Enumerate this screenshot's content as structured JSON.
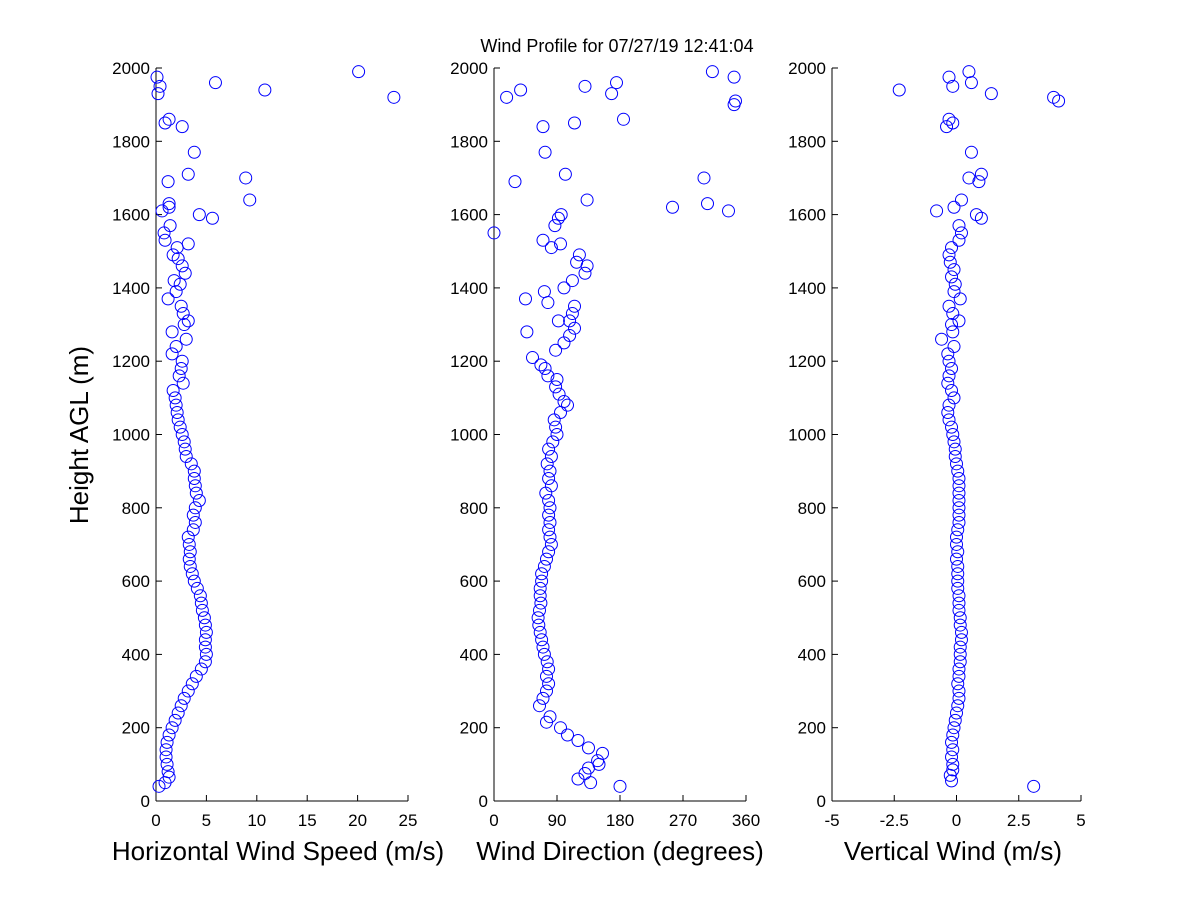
{
  "figure": {
    "title": "Wind Profile for  07/27/19 12:41:04",
    "ylabel": "Height AGL (m)"
  },
  "style": {
    "marker_color": "#0000ff",
    "axis_color": "#000000",
    "background": "#ffffff"
  },
  "chart_data": [
    {
      "type": "scatter",
      "title": "Wind Profile for  07/27/19 12:41:04",
      "xlabel": "Horizontal Wind Speed (m/s)",
      "ylabel": "Height AGL (m)",
      "xlim": [
        0,
        25
      ],
      "ylim": [
        0,
        2000
      ],
      "xticks": [
        0,
        5,
        10,
        15,
        20,
        25
      ],
      "xtick_labels": [
        "0",
        "5",
        "10",
        "15",
        "20",
        "25"
      ],
      "yticks": [
        0,
        200,
        400,
        600,
        800,
        1000,
        1200,
        1400,
        1600,
        1800,
        2000
      ],
      "ytick_labels": [
        "0",
        "200",
        "400",
        "600",
        "800",
        "1000",
        "1200",
        "1400",
        "1600",
        "1800",
        "2000"
      ],
      "marker": "open-circle",
      "grid": false,
      "points": [
        [
          0.3,
          40
        ],
        [
          0.9,
          50
        ],
        [
          1.3,
          65
        ],
        [
          1.2,
          80
        ],
        [
          1.1,
          100
        ],
        [
          1.0,
          120
        ],
        [
          1.0,
          140
        ],
        [
          1.1,
          160
        ],
        [
          1.3,
          180
        ],
        [
          1.6,
          200
        ],
        [
          1.9,
          220
        ],
        [
          2.2,
          240
        ],
        [
          2.5,
          260
        ],
        [
          2.8,
          280
        ],
        [
          3.2,
          300
        ],
        [
          3.6,
          320
        ],
        [
          4.0,
          340
        ],
        [
          4.5,
          360
        ],
        [
          4.9,
          380
        ],
        [
          5.0,
          400
        ],
        [
          4.9,
          420
        ],
        [
          4.9,
          440
        ],
        [
          5.0,
          460
        ],
        [
          4.9,
          480
        ],
        [
          4.8,
          500
        ],
        [
          4.6,
          520
        ],
        [
          4.5,
          540
        ],
        [
          4.4,
          560
        ],
        [
          4.1,
          580
        ],
        [
          3.8,
          600
        ],
        [
          3.6,
          620
        ],
        [
          3.4,
          640
        ],
        [
          3.3,
          660
        ],
        [
          3.4,
          680
        ],
        [
          3.3,
          700
        ],
        [
          3.2,
          720
        ],
        [
          3.7,
          740
        ],
        [
          3.9,
          760
        ],
        [
          3.7,
          780
        ],
        [
          3.9,
          800
        ],
        [
          4.3,
          820
        ],
        [
          4.0,
          840
        ],
        [
          3.9,
          860
        ],
        [
          3.8,
          880
        ],
        [
          3.8,
          900
        ],
        [
          3.5,
          920
        ],
        [
          3.0,
          940
        ],
        [
          2.9,
          960
        ],
        [
          2.8,
          980
        ],
        [
          2.6,
          1000
        ],
        [
          2.4,
          1020
        ],
        [
          2.2,
          1040
        ],
        [
          2.1,
          1060
        ],
        [
          2.0,
          1080
        ],
        [
          1.9,
          1100
        ],
        [
          1.7,
          1120
        ],
        [
          2.7,
          1140
        ],
        [
          2.3,
          1160
        ],
        [
          2.5,
          1180
        ],
        [
          2.6,
          1200
        ],
        [
          1.6,
          1220
        ],
        [
          2.0,
          1240
        ],
        [
          3.0,
          1260
        ],
        [
          1.6,
          1280
        ],
        [
          2.8,
          1300
        ],
        [
          3.2,
          1310
        ],
        [
          2.7,
          1330
        ],
        [
          2.5,
          1350
        ],
        [
          1.2,
          1370
        ],
        [
          2.0,
          1390
        ],
        [
          2.4,
          1410
        ],
        [
          1.8,
          1420
        ],
        [
          2.9,
          1440
        ],
        [
          2.6,
          1460
        ],
        [
          2.2,
          1480
        ],
        [
          1.7,
          1490
        ],
        [
          2.1,
          1510
        ],
        [
          3.2,
          1520
        ],
        [
          0.9,
          1530
        ],
        [
          0.8,
          1550
        ],
        [
          1.4,
          1570
        ],
        [
          5.6,
          1590
        ],
        [
          4.3,
          1600
        ],
        [
          0.6,
          1610
        ],
        [
          1.3,
          1620
        ],
        [
          1.3,
          1630
        ],
        [
          9.3,
          1640
        ],
        [
          8.9,
          1700
        ],
        [
          3.2,
          1710
        ],
        [
          1.2,
          1690
        ],
        [
          3.8,
          1770
        ],
        [
          2.6,
          1840
        ],
        [
          0.9,
          1850
        ],
        [
          1.3,
          1860
        ],
        [
          23.6,
          1920
        ],
        [
          0.2,
          1930
        ],
        [
          10.8,
          1940
        ],
        [
          0.4,
          1950
        ],
        [
          5.9,
          1960
        ],
        [
          0.1,
          1975
        ],
        [
          20.1,
          1990
        ]
      ]
    },
    {
      "type": "scatter",
      "xlabel": "Wind Direction (degrees)",
      "xlim": [
        0,
        360
      ],
      "ylim": [
        0,
        2000
      ],
      "xticks": [
        0,
        90,
        180,
        270,
        360
      ],
      "xtick_labels": [
        "0",
        "90",
        "180",
        "270",
        "360"
      ],
      "yticks": [
        0,
        200,
        400,
        600,
        800,
        1000,
        1200,
        1400,
        1600,
        1800,
        2000
      ],
      "ytick_labels": [
        "0",
        "200",
        "400",
        "600",
        "800",
        "1000",
        "1200",
        "1400",
        "1600",
        "1800",
        "2000"
      ],
      "marker": "open-circle",
      "grid": false,
      "points": [
        [
          180,
          40
        ],
        [
          138,
          50
        ],
        [
          120,
          60
        ],
        [
          130,
          75
        ],
        [
          135,
          90
        ],
        [
          150,
          100
        ],
        [
          148,
          110
        ],
        [
          155,
          130
        ],
        [
          135,
          145
        ],
        [
          120,
          165
        ],
        [
          105,
          180
        ],
        [
          95,
          200
        ],
        [
          75,
          215
        ],
        [
          80,
          230
        ],
        [
          65,
          260
        ],
        [
          70,
          280
        ],
        [
          75,
          300
        ],
        [
          78,
          320
        ],
        [
          75,
          340
        ],
        [
          78,
          360
        ],
        [
          76,
          380
        ],
        [
          72,
          400
        ],
        [
          70,
          420
        ],
        [
          68,
          440
        ],
        [
          66,
          460
        ],
        [
          64,
          480
        ],
        [
          63,
          500
        ],
        [
          65,
          520
        ],
        [
          67,
          540
        ],
        [
          66,
          560
        ],
        [
          66,
          580
        ],
        [
          68,
          600
        ],
        [
          68,
          620
        ],
        [
          72,
          640
        ],
        [
          75,
          660
        ],
        [
          78,
          680
        ],
        [
          82,
          700
        ],
        [
          80,
          720
        ],
        [
          78,
          740
        ],
        [
          80,
          760
        ],
        [
          78,
          780
        ],
        [
          80,
          800
        ],
        [
          78,
          820
        ],
        [
          74,
          840
        ],
        [
          82,
          860
        ],
        [
          78,
          880
        ],
        [
          80,
          900
        ],
        [
          76,
          920
        ],
        [
          82,
          940
        ],
        [
          78,
          960
        ],
        [
          84,
          980
        ],
        [
          90,
          1000
        ],
        [
          88,
          1020
        ],
        [
          86,
          1040
        ],
        [
          95,
          1060
        ],
        [
          105,
          1080
        ],
        [
          100,
          1090
        ],
        [
          93,
          1110
        ],
        [
          88,
          1130
        ],
        [
          90,
          1150
        ],
        [
          77,
          1160
        ],
        [
          73,
          1180
        ],
        [
          67,
          1190
        ],
        [
          55,
          1210
        ],
        [
          88,
          1230
        ],
        [
          100,
          1250
        ],
        [
          108,
          1270
        ],
        [
          47,
          1280
        ],
        [
          115,
          1290
        ],
        [
          108,
          1310
        ],
        [
          92,
          1310
        ],
        [
          112,
          1330
        ],
        [
          115,
          1350
        ],
        [
          77,
          1360
        ],
        [
          45,
          1370
        ],
        [
          72,
          1390
        ],
        [
          100,
          1400
        ],
        [
          112,
          1420
        ],
        [
          130,
          1440
        ],
        [
          133,
          1460
        ],
        [
          118,
          1470
        ],
        [
          122,
          1490
        ],
        [
          82,
          1510
        ],
        [
          95,
          1520
        ],
        [
          70,
          1530
        ],
        [
          0,
          1550
        ],
        [
          87,
          1570
        ],
        [
          92,
          1590
        ],
        [
          96,
          1600
        ],
        [
          255,
          1620
        ],
        [
          305,
          1630
        ],
        [
          335,
          1610
        ],
        [
          133,
          1640
        ],
        [
          30,
          1690
        ],
        [
          300,
          1700
        ],
        [
          102,
          1710
        ],
        [
          73,
          1770
        ],
        [
          70,
          1840
        ],
        [
          115,
          1850
        ],
        [
          185,
          1860
        ],
        [
          18,
          1920
        ],
        [
          343,
          1900
        ],
        [
          345,
          1910
        ],
        [
          168,
          1930
        ],
        [
          38,
          1940
        ],
        [
          130,
          1950
        ],
        [
          175,
          1960
        ],
        [
          343,
          1975
        ],
        [
          312,
          1990
        ]
      ]
    },
    {
      "type": "scatter",
      "xlabel": "Vertical Wind (m/s)",
      "xlim": [
        -5,
        5
      ],
      "ylim": [
        0,
        2000
      ],
      "xticks": [
        -5,
        -2.5,
        0,
        2.5,
        5
      ],
      "xtick_labels": [
        "-5",
        "-2.5",
        "0",
        "2.5",
        "5"
      ],
      "yticks": [
        0,
        200,
        400,
        600,
        800,
        1000,
        1200,
        1400,
        1600,
        1800,
        2000
      ],
      "ytick_labels": [
        "0",
        "200",
        "400",
        "600",
        "800",
        "1000",
        "1200",
        "1400",
        "1600",
        "1800",
        "2000"
      ],
      "marker": "open-circle",
      "grid": false,
      "points": [
        [
          3.1,
          40
        ],
        [
          -0.2,
          55
        ],
        [
          -0.25,
          70
        ],
        [
          -0.15,
          85
        ],
        [
          -0.15,
          100
        ],
        [
          -0.2,
          120
        ],
        [
          -0.15,
          140
        ],
        [
          -0.2,
          160
        ],
        [
          -0.15,
          180
        ],
        [
          -0.1,
          200
        ],
        [
          -0.05,
          220
        ],
        [
          0.0,
          240
        ],
        [
          0.05,
          260
        ],
        [
          0.1,
          280
        ],
        [
          0.1,
          300
        ],
        [
          0.05,
          320
        ],
        [
          0.1,
          340
        ],
        [
          0.1,
          360
        ],
        [
          0.15,
          380
        ],
        [
          0.15,
          400
        ],
        [
          0.15,
          420
        ],
        [
          0.2,
          440
        ],
        [
          0.2,
          460
        ],
        [
          0.15,
          480
        ],
        [
          0.15,
          500
        ],
        [
          0.1,
          520
        ],
        [
          0.1,
          540
        ],
        [
          0.1,
          560
        ],
        [
          0.05,
          580
        ],
        [
          0.05,
          600
        ],
        [
          0.05,
          620
        ],
        [
          0.05,
          640
        ],
        [
          0.0,
          660
        ],
        [
          0.05,
          680
        ],
        [
          0.0,
          700
        ],
        [
          0.0,
          720
        ],
        [
          0.05,
          740
        ],
        [
          0.1,
          760
        ],
        [
          0.1,
          780
        ],
        [
          0.1,
          800
        ],
        [
          0.1,
          820
        ],
        [
          0.1,
          840
        ],
        [
          0.1,
          860
        ],
        [
          0.1,
          880
        ],
        [
          0.05,
          900
        ],
        [
          0.0,
          920
        ],
        [
          -0.05,
          940
        ],
        [
          -0.05,
          960
        ],
        [
          -0.1,
          980
        ],
        [
          -0.15,
          1000
        ],
        [
          -0.2,
          1020
        ],
        [
          -0.3,
          1040
        ],
        [
          -0.35,
          1060
        ],
        [
          -0.3,
          1080
        ],
        [
          -0.1,
          1100
        ],
        [
          -0.2,
          1120
        ],
        [
          -0.35,
          1140
        ],
        [
          -0.3,
          1160
        ],
        [
          -0.2,
          1180
        ],
        [
          -0.3,
          1200
        ],
        [
          -0.35,
          1220
        ],
        [
          -0.1,
          1240
        ],
        [
          -0.6,
          1260
        ],
        [
          -0.15,
          1280
        ],
        [
          -0.2,
          1300
        ],
        [
          0.1,
          1310
        ],
        [
          -0.15,
          1330
        ],
        [
          -0.3,
          1350
        ],
        [
          0.15,
          1370
        ],
        [
          -0.1,
          1390
        ],
        [
          -0.05,
          1410
        ],
        [
          -0.2,
          1430
        ],
        [
          -0.1,
          1450
        ],
        [
          -0.25,
          1470
        ],
        [
          -0.3,
          1490
        ],
        [
          -0.2,
          1510
        ],
        [
          0.1,
          1530
        ],
        [
          0.2,
          1550
        ],
        [
          0.1,
          1570
        ],
        [
          1.0,
          1590
        ],
        [
          0.8,
          1600
        ],
        [
          -0.8,
          1610
        ],
        [
          -0.1,
          1620
        ],
        [
          0.2,
          1640
        ],
        [
          0.9,
          1690
        ],
        [
          0.5,
          1700
        ],
        [
          1.0,
          1710
        ],
        [
          0.6,
          1770
        ],
        [
          -0.4,
          1840
        ],
        [
          -0.15,
          1850
        ],
        [
          -0.3,
          1860
        ],
        [
          3.9,
          1920
        ],
        [
          4.1,
          1910
        ],
        [
          1.4,
          1930
        ],
        [
          -2.3,
          1940
        ],
        [
          -0.15,
          1950
        ],
        [
          0.6,
          1960
        ],
        [
          -0.3,
          1975
        ],
        [
          0.5,
          1990
        ]
      ]
    }
  ]
}
